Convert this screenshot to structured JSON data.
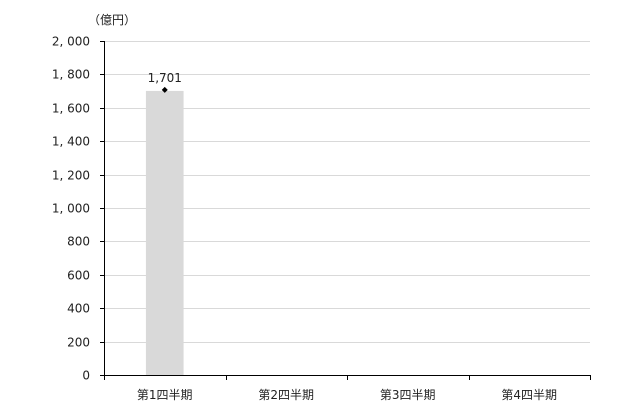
{
  "chart_data": {
    "type": "bar",
    "unit_label": "（億円）",
    "categories": [
      "第1四半期",
      "第2四半期",
      "第3四半期",
      "第4四半期"
    ],
    "values": [
      1701,
      null,
      null,
      null
    ],
    "data_labels": [
      "1,701",
      "",
      "",
      ""
    ],
    "ylim": [
      0,
      2000
    ],
    "yticks": [
      0,
      200,
      400,
      600,
      800,
      1000,
      1200,
      1400,
      1600,
      1800,
      2000
    ],
    "ytick_labels": [
      "0",
      "200",
      "400",
      "600",
      "800",
      "1, 000",
      "1, 200",
      "1, 400",
      "1, 600",
      "1, 800",
      "2, 000"
    ],
    "grid": true,
    "bar_color": "#d9d9d9",
    "grid_color": "#d9d9d9",
    "axis_color": "#000000",
    "marker_color": "#000000"
  }
}
